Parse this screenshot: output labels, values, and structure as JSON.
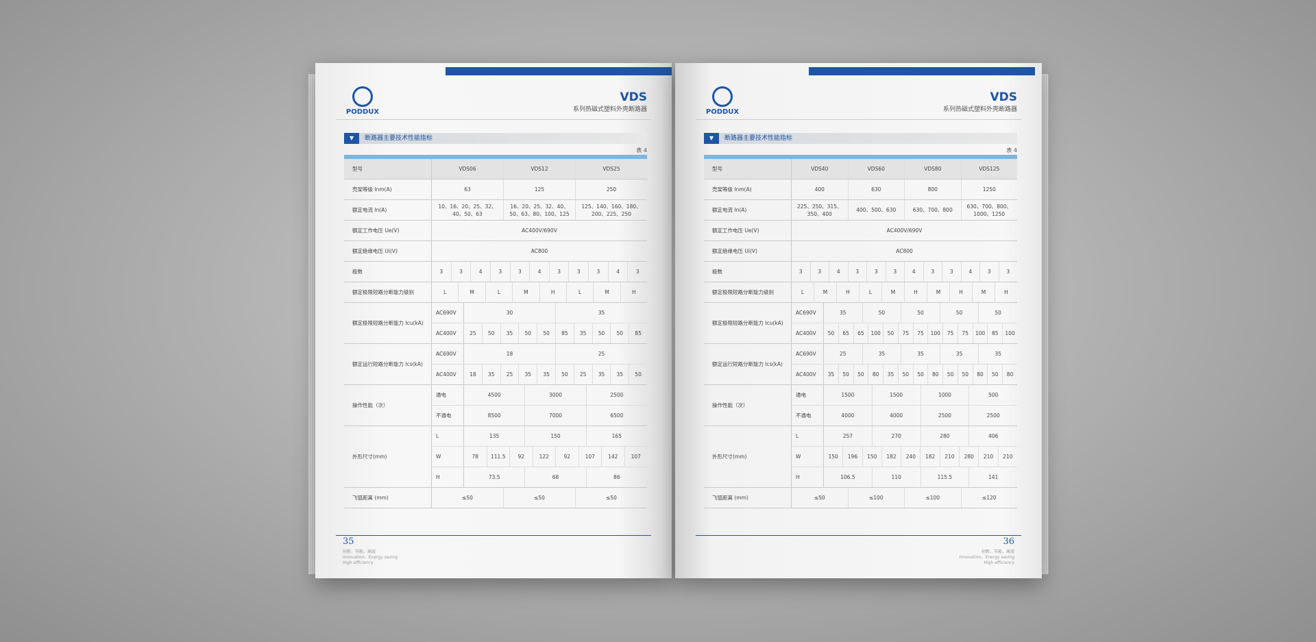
{
  "left_page": {
    "brand": "PODDUX",
    "model": "VDS",
    "subtitle": "系列热磁式塑料外壳断路器",
    "section": "断路器主要技术性能指标",
    "table_no": "表 4",
    "table": [
      {
        "label": "型号",
        "cells": [
          "VDS06",
          "VDS12",
          "VDS25"
        ]
      },
      {
        "label": "壳架等级 Inm(A)",
        "cells": [
          "63",
          "125",
          "250"
        ]
      },
      {
        "label": "额定电流 In(A)",
        "cells": [
          "10、16、20、25、32、40、50、63",
          "16、20、25、32、40、50、63、80、100、125",
          "125、140、160、180、200、225、250"
        ]
      },
      {
        "label": "额定工作电压 Ue(V)",
        "cells": [
          "AC400V/690V"
        ]
      },
      {
        "label": "额定绝缘电压 Ui(V)",
        "cells": [
          "AC800"
        ]
      },
      {
        "label": "极数",
        "cells": [
          "3",
          "3",
          "4",
          "3",
          "3",
          "4",
          "3",
          "3",
          "3",
          "4",
          "3"
        ]
      },
      {
        "label": "额定极限短路分断能力级别",
        "cells": [
          "L",
          "M",
          "L",
          "M",
          "H",
          "L",
          "M",
          "H"
        ]
      },
      {
        "label": "额定极限短路分断能力 Icu(kA)",
        "rows": [
          {
            "sub": "AC690V",
            "cells": [
              "30",
              "35"
            ]
          },
          {
            "sub": "AC400V",
            "cells": [
              "25",
              "50",
              "35",
              "50",
              "50",
              "85",
              "35",
              "50",
              "50",
              "85"
            ]
          }
        ]
      },
      {
        "label": "额定运行短路分断能力 Ics(kA)",
        "rows": [
          {
            "sub": "AC690V",
            "cells": [
              "18",
              "25"
            ]
          },
          {
            "sub": "AC400V",
            "cells": [
              "18",
              "35",
              "25",
              "35",
              "35",
              "50",
              "25",
              "35",
              "35",
              "50"
            ]
          }
        ]
      },
      {
        "label": "操作性能（次）",
        "rows": [
          {
            "sub": "通电",
            "cells": [
              "4500",
              "3000",
              "2500"
            ]
          },
          {
            "sub": "不通电",
            "cells": [
              "8500",
              "7000",
              "6500"
            ]
          }
        ]
      },
      {
        "label": "外形尺寸(mm)",
        "rows": [
          {
            "sub": "L",
            "cells": [
              "135",
              "150",
              "165"
            ]
          },
          {
            "sub": "W",
            "cells": [
              "78",
              "111.5",
              "92",
              "122",
              "92",
              "107",
              "142",
              "107"
            ]
          },
          {
            "sub": "H",
            "cells": [
              "73.5",
              "68",
              "86"
            ]
          }
        ]
      },
      {
        "label": "飞弧距离 (mm)",
        "cells": [
          "≤50",
          "≤50",
          "≤50"
        ]
      }
    ],
    "page_number": "35",
    "footer": [
      "创新、节能、高效",
      "Innovation、Energy saving",
      "High efficiency"
    ]
  },
  "right_page": {
    "brand": "PODDUX",
    "model": "VDS",
    "subtitle": "系列热磁式塑料外壳断路器",
    "section": "断路器主要技术性能指标",
    "table_no": "表 4",
    "table": [
      {
        "label": "型号",
        "cells": [
          "VDS40",
          "VDS60",
          "VDS80",
          "VDS125"
        ]
      },
      {
        "label": "壳架等级 Inm(A)",
        "cells": [
          "400",
          "630",
          "800",
          "1250"
        ]
      },
      {
        "label": "额定电流 In(A)",
        "cells": [
          "225、250、315、350、400",
          "400、500、630",
          "630、700、800",
          "630、700、800、1000、1250"
        ]
      },
      {
        "label": "额定工作电压 Ue(V)",
        "cells": [
          "AC400V/690V"
        ]
      },
      {
        "label": "额定绝缘电压 Ui(V)",
        "cells": [
          "AC800"
        ]
      },
      {
        "label": "极数",
        "cells": [
          "3",
          "3",
          "4",
          "3",
          "3",
          "3",
          "4",
          "3",
          "3",
          "4",
          "3",
          "3"
        ]
      },
      {
        "label": "额定极限短路分断能力级别",
        "cells": [
          "L",
          "M",
          "H",
          "L",
          "M",
          "H",
          "M",
          "H",
          "M",
          "H"
        ]
      },
      {
        "label": "额定极限短路分断能力 Icu(kA)",
        "rows": [
          {
            "sub": "AC690V",
            "cells": [
              "35",
              "50",
              "50",
              "50",
              "50"
            ]
          },
          {
            "sub": "AC400V",
            "cells": [
              "50",
              "65",
              "65",
              "100",
              "50",
              "75",
              "75",
              "100",
              "75",
              "75",
              "100",
              "85",
              "100"
            ]
          }
        ]
      },
      {
        "label": "额定运行短路分断能力 Ics(kA)",
        "rows": [
          {
            "sub": "AC690V",
            "cells": [
              "25",
              "35",
              "35",
              "35",
              "35"
            ]
          },
          {
            "sub": "AC400V",
            "cells": [
              "35",
              "50",
              "50",
              "80",
              "35",
              "50",
              "50",
              "80",
              "50",
              "50",
              "80",
              "50",
              "80"
            ]
          }
        ]
      },
      {
        "label": "操作性能（次）",
        "rows": [
          {
            "sub": "通电",
            "cells": [
              "1500",
              "1500",
              "1000",
              "500"
            ]
          },
          {
            "sub": "不通电",
            "cells": [
              "4000",
              "4000",
              "2500",
              "2500"
            ]
          }
        ]
      },
      {
        "label": "外形尺寸(mm)",
        "rows": [
          {
            "sub": "L",
            "cells": [
              "257",
              "270",
              "280",
              "406"
            ]
          },
          {
            "sub": "W",
            "cells": [
              "150",
              "196",
              "150",
              "182",
              "240",
              "182",
              "210",
              "280",
              "210",
              "210"
            ]
          },
          {
            "sub": "H",
            "cells": [
              "106.5",
              "110",
              "115.5",
              "141"
            ]
          }
        ]
      },
      {
        "label": "飞弧距离 (mm)",
        "cells": [
          "≤50",
          "≤100",
          "≤100",
          "≤120"
        ]
      }
    ],
    "page_number": "36",
    "footer": [
      "创新、节能、高效",
      "Innovation、Energy saving",
      "High efficiency"
    ]
  }
}
